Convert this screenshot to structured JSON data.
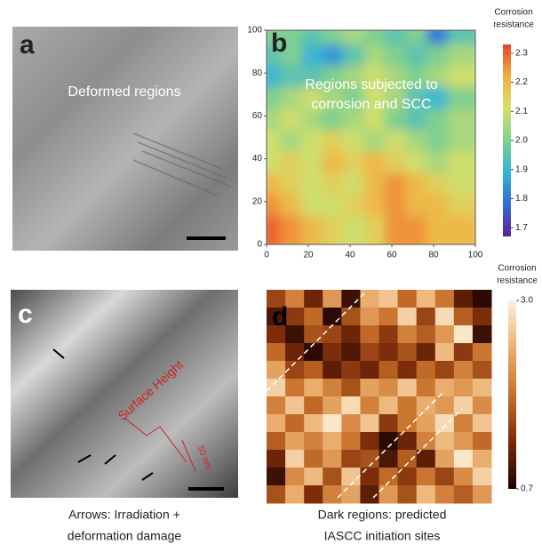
{
  "panels": {
    "a": {
      "label": "a",
      "annotation": "Deformed regions"
    },
    "b": {
      "label": "b",
      "annotation_lines": [
        "Regions subjected to",
        "corrosion and SCC"
      ]
    },
    "c": {
      "label": "c",
      "annotation": "Surface Height",
      "scale_label": "50 nm",
      "caption_lines": [
        "Arrows: Irradiation +",
        "deformation damage"
      ]
    },
    "d": {
      "label": "d",
      "caption_lines": [
        "Dark regions: predicted",
        "IASCC initiation sites"
      ]
    }
  },
  "chart_data": [
    {
      "type": "contour",
      "xlim": [
        0,
        100
      ],
      "xticks": [
        0,
        20,
        40,
        60,
        80,
        100
      ],
      "ylim": [
        0,
        100
      ],
      "yticks": [
        0,
        20,
        40,
        60,
        80,
        100
      ],
      "colorbar_title_lines": [
        "Corrosion",
        "resistance"
      ],
      "clim": [
        1.67,
        2.33
      ],
      "cticks": [
        1.7,
        1.8,
        1.9,
        {
          "value": 2,
          "label": "2.0"
        },
        2.1,
        2.2,
        2.3
      ],
      "colormap": [
        "#5b1f9e",
        "#2f6bd6",
        "#35b3d6",
        "#7fcf8f",
        "#d6e06a",
        "#f2b040",
        "#e8452b"
      ],
      "z": [
        [
          2.0,
          2.0,
          1.95,
          2.0,
          2.05,
          2.0,
          1.95,
          2.0,
          1.8,
          1.95
        ],
        [
          1.95,
          2.0,
          1.9,
          1.85,
          1.95,
          2.05,
          2.0,
          1.95,
          2.0,
          2.05
        ],
        [
          1.9,
          1.95,
          1.95,
          2.0,
          2.05,
          2.1,
          2.05,
          2.0,
          2.05,
          2.1
        ],
        [
          2.0,
          2.05,
          2.1,
          2.05,
          2.0,
          2.1,
          2.05,
          1.95,
          1.9,
          2.0
        ],
        [
          2.05,
          2.1,
          2.05,
          2.0,
          2.05,
          2.1,
          2.0,
          1.95,
          2.0,
          2.05
        ],
        [
          2.1,
          2.05,
          2.1,
          2.15,
          2.1,
          2.05,
          2.1,
          2.05,
          2.0,
          2.05
        ],
        [
          2.1,
          2.15,
          2.1,
          2.2,
          2.15,
          2.2,
          2.15,
          2.1,
          2.05,
          2.1
        ],
        [
          2.2,
          2.15,
          2.1,
          2.15,
          2.1,
          2.2,
          2.25,
          2.2,
          2.15,
          2.1
        ],
        [
          2.25,
          2.2,
          2.1,
          2.1,
          2.15,
          2.2,
          2.25,
          2.2,
          2.2,
          2.15
        ],
        [
          2.3,
          2.25,
          2.2,
          2.15,
          2.1,
          2.15,
          2.25,
          2.25,
          2.2,
          2.2
        ]
      ]
    },
    {
      "type": "heatmap",
      "colorbar_title_lines": [
        "Corrosion",
        "resistance"
      ],
      "clim": [
        0.7,
        3.0
      ],
      "cticks": [
        {
          "value": 3,
          "label": "3.0"
        },
        0.7
      ],
      "colormap": [
        "#1a0400",
        "#7a2a08",
        "#c8702a",
        "#ecb070",
        "#fdf2dc"
      ],
      "z": [
        [
          1.5,
          2.0,
          1.2,
          2.2,
          0.9,
          2.4,
          2.6,
          1.8,
          2.5,
          1.9,
          1.1,
          0.8
        ],
        [
          1.0,
          1.4,
          1.8,
          0.8,
          1.6,
          2.2,
          1.9,
          2.7,
          1.5,
          2.8,
          1.7,
          1.3
        ],
        [
          1.3,
          0.9,
          1.6,
          1.5,
          1.2,
          1.8,
          1.4,
          2.0,
          1.7,
          2.2,
          2.9,
          0.9
        ],
        [
          1.8,
          1.2,
          0.8,
          1.3,
          1.0,
          1.5,
          1.3,
          1.6,
          1.2,
          2.5,
          1.4,
          1.9
        ],
        [
          2.3,
          1.5,
          1.7,
          1.1,
          1.4,
          1.2,
          1.7,
          1.3,
          1.8,
          1.5,
          2.0,
          1.6
        ],
        [
          2.7,
          1.9,
          2.4,
          2.0,
          1.6,
          2.3,
          2.1,
          2.6,
          1.9,
          2.4,
          2.2,
          2.5
        ],
        [
          2.0,
          2.6,
          1.8,
          2.3,
          2.8,
          2.0,
          2.5,
          1.9,
          2.4,
          2.2,
          2.7,
          2.1
        ],
        [
          2.4,
          1.8,
          2.5,
          2.9,
          2.1,
          2.6,
          1.4,
          1.9,
          2.3,
          2.8,
          2.0,
          2.6
        ],
        [
          1.7,
          2.3,
          2.0,
          2.4,
          1.9,
          1.3,
          0.8,
          1.2,
          2.0,
          2.5,
          2.2,
          1.8
        ],
        [
          1.2,
          2.7,
          1.8,
          2.2,
          1.5,
          1.6,
          1.0,
          1.7,
          1.1,
          2.3,
          2.9,
          2.4
        ],
        [
          0.9,
          2.1,
          2.5,
          1.6,
          2.6,
          1.3,
          1.8,
          1.4,
          1.9,
          1.5,
          2.1,
          2.7
        ],
        [
          1.6,
          2.4,
          1.3,
          2.0,
          2.3,
          1.1,
          2.2,
          1.6,
          2.5,
          2.0,
          1.7,
          2.2
        ]
      ]
    }
  ]
}
